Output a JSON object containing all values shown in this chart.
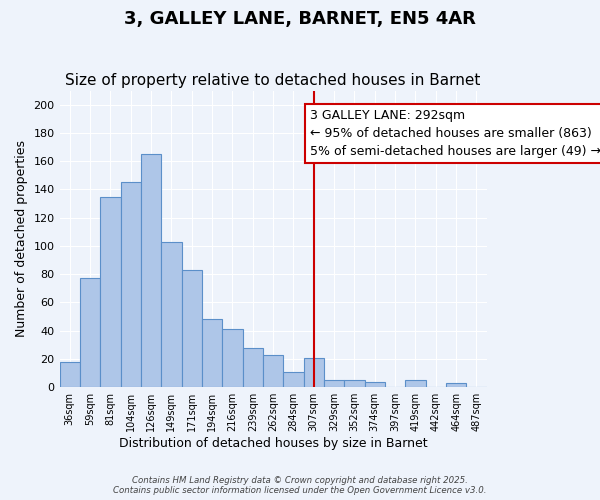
{
  "title": "3, GALLEY LANE, BARNET, EN5 4AR",
  "subtitle": "Size of property relative to detached houses in Barnet",
  "xlabel": "Distribution of detached houses by size in Barnet",
  "ylabel": "Number of detached properties",
  "bar_labels": [
    "36sqm",
    "59sqm",
    "81sqm",
    "104sqm",
    "126sqm",
    "149sqm",
    "171sqm",
    "194sqm",
    "216sqm",
    "239sqm",
    "262sqm",
    "284sqm",
    "307sqm",
    "329sqm",
    "352sqm",
    "374sqm",
    "397sqm",
    "419sqm",
    "442sqm",
    "464sqm",
    "487sqm"
  ],
  "bar_values": [
    18,
    77,
    135,
    145,
    165,
    103,
    83,
    48,
    41,
    28,
    23,
    11,
    21,
    5,
    5,
    4,
    0,
    5,
    0,
    3,
    0
  ],
  "bar_color": "#aec6e8",
  "bar_edge_color": "#5b8fc9",
  "background_color": "#eef3fb",
  "grid_color": "#ffffff",
  "vline_x": 12.5,
  "vline_color": "#cc0000",
  "annotation_text": "3 GALLEY LANE: 292sqm\n← 95% of detached houses are smaller (863)\n5% of semi-detached houses are larger (49) →",
  "annotation_box_color": "#ffffff",
  "annotation_box_edge": "#cc0000",
  "ylim": [
    0,
    210
  ],
  "yticks": [
    0,
    20,
    40,
    60,
    80,
    100,
    120,
    140,
    160,
    180,
    200
  ],
  "footer_text": "Contains HM Land Registry data © Crown copyright and database right 2025.\nContains public sector information licensed under the Open Government Licence v3.0.",
  "title_fontsize": 13,
  "subtitle_fontsize": 11,
  "axis_label_fontsize": 9,
  "tick_fontsize": 8,
  "annotation_fontsize": 9
}
